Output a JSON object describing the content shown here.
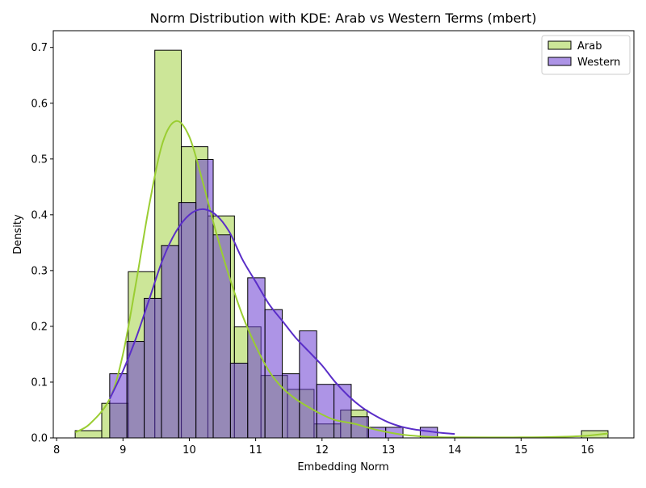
{
  "chart_data": {
    "type": "histogram-kde",
    "title": "Norm Distribution with KDE: Arab vs Western Terms (mbert)",
    "xlabel": "Embedding Norm",
    "ylabel": "Density",
    "xlim": [
      7.95,
      16.7
    ],
    "ylim": [
      0,
      0.73
    ],
    "xticks": [
      8,
      9,
      10,
      11,
      12,
      13,
      14,
      15,
      16
    ],
    "yticks": [
      0.0,
      0.1,
      0.2,
      0.3,
      0.4,
      0.5,
      0.6,
      0.7
    ],
    "grid": false,
    "legend_position": "top-right",
    "series": [
      {
        "name": "Arab",
        "color": "#9acd32",
        "bar_fill": "rgba(154,205,50,0.5)",
        "bins": [
          {
            "x0": 8.28,
            "x1": 8.68,
            "density": 0.013
          },
          {
            "x0": 8.68,
            "x1": 9.08,
            "density": 0.062
          },
          {
            "x0": 9.08,
            "x1": 9.48,
            "density": 0.298
          },
          {
            "x0": 9.48,
            "x1": 9.88,
            "density": 0.695
          },
          {
            "x0": 9.88,
            "x1": 10.28,
            "density": 0.522
          },
          {
            "x0": 10.28,
            "x1": 10.68,
            "density": 0.398
          },
          {
            "x0": 10.68,
            "x1": 11.08,
            "density": 0.199
          },
          {
            "x0": 11.08,
            "x1": 11.48,
            "density": 0.112
          },
          {
            "x0": 11.48,
            "x1": 11.88,
            "density": 0.087
          },
          {
            "x0": 11.88,
            "x1": 12.28,
            "density": 0.025
          },
          {
            "x0": 12.28,
            "x1": 12.68,
            "density": 0.05
          },
          {
            "x0": 15.91,
            "x1": 16.31,
            "density": 0.013
          }
        ],
        "kde": [
          [
            8.28,
            0.01
          ],
          [
            8.5,
            0.025
          ],
          [
            8.8,
            0.07
          ],
          [
            9.0,
            0.15
          ],
          [
            9.2,
            0.28
          ],
          [
            9.4,
            0.42
          ],
          [
            9.6,
            0.53
          ],
          [
            9.8,
            0.568
          ],
          [
            10.0,
            0.54
          ],
          [
            10.2,
            0.46
          ],
          [
            10.4,
            0.37
          ],
          [
            10.6,
            0.29
          ],
          [
            10.8,
            0.22
          ],
          [
            11.0,
            0.165
          ],
          [
            11.2,
            0.12
          ],
          [
            11.4,
            0.09
          ],
          [
            11.6,
            0.07
          ],
          [
            11.8,
            0.055
          ],
          [
            12.0,
            0.042
          ],
          [
            12.2,
            0.032
          ],
          [
            12.5,
            0.025
          ],
          [
            12.8,
            0.015
          ],
          [
            13.2,
            0.006
          ],
          [
            13.6,
            0.002
          ],
          [
            14.0,
            0.001
          ],
          [
            15.0,
            0.001
          ],
          [
            15.6,
            0.002
          ],
          [
            16.0,
            0.004
          ],
          [
            16.31,
            0.008
          ]
        ]
      },
      {
        "name": "Western",
        "color": "#5a2ec8",
        "bar_fill": "rgba(106,60,210,0.55)",
        "bins": [
          {
            "x0": 8.8,
            "x1": 9.06,
            "density": 0.115
          },
          {
            "x0": 9.06,
            "x1": 9.32,
            "density": 0.173
          },
          {
            "x0": 9.32,
            "x1": 9.58,
            "density": 0.25
          },
          {
            "x0": 9.58,
            "x1": 9.84,
            "density": 0.345
          },
          {
            "x0": 9.84,
            "x1": 10.1,
            "density": 0.422
          },
          {
            "x0": 10.1,
            "x1": 10.36,
            "density": 0.499
          },
          {
            "x0": 10.36,
            "x1": 10.62,
            "density": 0.364
          },
          {
            "x0": 10.62,
            "x1": 10.88,
            "density": 0.134
          },
          {
            "x0": 10.88,
            "x1": 11.14,
            "density": 0.287
          },
          {
            "x0": 11.14,
            "x1": 11.4,
            "density": 0.23
          },
          {
            "x0": 11.4,
            "x1": 11.66,
            "density": 0.115
          },
          {
            "x0": 11.66,
            "x1": 11.92,
            "density": 0.192
          },
          {
            "x0": 11.92,
            "x1": 12.18,
            "density": 0.096
          },
          {
            "x0": 12.18,
            "x1": 12.44,
            "density": 0.096
          },
          {
            "x0": 12.44,
            "x1": 12.7,
            "density": 0.038
          },
          {
            "x0": 12.7,
            "x1": 12.96,
            "density": 0.019
          },
          {
            "x0": 12.96,
            "x1": 13.22,
            "density": 0.019
          },
          {
            "x0": 13.48,
            "x1": 13.74,
            "density": 0.019
          }
        ],
        "kde": [
          [
            8.8,
            0.07
          ],
          [
            9.0,
            0.12
          ],
          [
            9.2,
            0.18
          ],
          [
            9.4,
            0.25
          ],
          [
            9.6,
            0.32
          ],
          [
            9.8,
            0.37
          ],
          [
            10.0,
            0.4
          ],
          [
            10.2,
            0.41
          ],
          [
            10.4,
            0.4
          ],
          [
            10.6,
            0.37
          ],
          [
            10.8,
            0.32
          ],
          [
            11.0,
            0.28
          ],
          [
            11.2,
            0.24
          ],
          [
            11.4,
            0.21
          ],
          [
            11.6,
            0.18
          ],
          [
            11.8,
            0.155
          ],
          [
            12.0,
            0.13
          ],
          [
            12.2,
            0.1
          ],
          [
            12.4,
            0.075
          ],
          [
            12.6,
            0.055
          ],
          [
            12.8,
            0.04
          ],
          [
            13.0,
            0.028
          ],
          [
            13.2,
            0.02
          ],
          [
            13.4,
            0.015
          ],
          [
            13.6,
            0.012
          ],
          [
            13.8,
            0.009
          ],
          [
            14.0,
            0.007
          ]
        ]
      }
    ]
  }
}
